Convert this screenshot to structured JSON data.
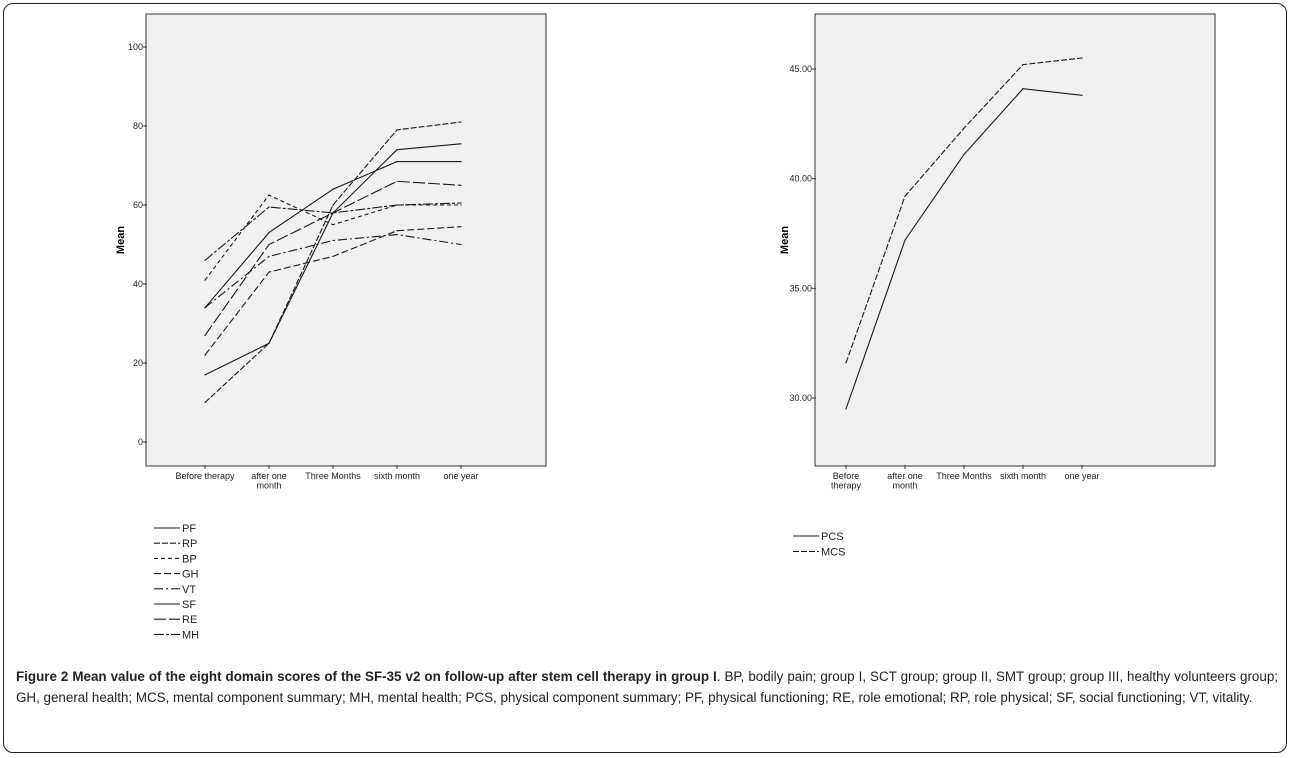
{
  "caption": {
    "label": "Figure 2 Mean value of the eight domain scores of the SF-35 v2 on follow-up after stem cell therapy in group I",
    "text": ". BP, bodily pain; group I, SCT group; group II, SMT group; group III, healthy volunteers group; GH, general health; MCS, mental component summary; MH, mental health; PCS, physical component summary; PF, physical functioning; RE, role emotional; RP, role physical; SF, social functioning; VT, vitality."
  },
  "chart_data": [
    {
      "type": "line",
      "ylabel": "Mean",
      "xlabel": "",
      "ylim": [
        0,
        100
      ],
      "yticks": [
        "0",
        "20",
        "40",
        "60",
        "80",
        "100"
      ],
      "categories": [
        "Before therapy",
        "after one month",
        "Three Months",
        "sixth month",
        "one year"
      ],
      "legend_position": "below",
      "grid": false,
      "series": [
        {
          "name": "PF",
          "dash": "",
          "values": [
            34,
            53,
            64,
            71,
            71
          ]
        },
        {
          "name": "RP",
          "dash": "6 2",
          "values": [
            10,
            25,
            60,
            79,
            81
          ]
        },
        {
          "name": "BP",
          "dash": "4 3",
          "values": [
            41,
            62.5,
            55,
            60,
            60
          ]
        },
        {
          "name": "GH",
          "dash": "7 3",
          "values": [
            22,
            43,
            47,
            53.5,
            54.5
          ]
        },
        {
          "name": "VT",
          "dash": "9 3 2 3",
          "values": [
            34,
            47,
            51,
            52.5,
            50
          ]
        },
        {
          "name": "SF",
          "dash": "",
          "values": [
            17,
            25,
            58,
            74,
            75.5
          ]
        },
        {
          "name": "RE",
          "dash": "12 3",
          "values": [
            27,
            50,
            58,
            66,
            65
          ]
        },
        {
          "name": "MH",
          "dash": "10 2 3 2",
          "values": [
            46,
            59.5,
            58,
            60,
            60.5
          ]
        }
      ]
    },
    {
      "type": "line",
      "ylabel": "Mean",
      "xlabel": "",
      "ylim": [
        27,
        47
      ],
      "yticks": [
        "30.00",
        "35.00",
        "40.00",
        "45.00"
      ],
      "categories": [
        "Before therapy",
        "after one month",
        "Three Months",
        "sixth month",
        "one year"
      ],
      "legend_position": "below",
      "grid": false,
      "series": [
        {
          "name": "PCS",
          "dash": "",
          "values": [
            29.5,
            37.2,
            41.1,
            44.1,
            43.8
          ]
        },
        {
          "name": "MCS",
          "dash": "6 2",
          "values": [
            31.6,
            39.2,
            42.3,
            45.2,
            45.5
          ]
        }
      ]
    }
  ],
  "colors": {
    "plot_background": "#f0f0f0",
    "line": "#1a1a1a",
    "frame": "#222222"
  }
}
